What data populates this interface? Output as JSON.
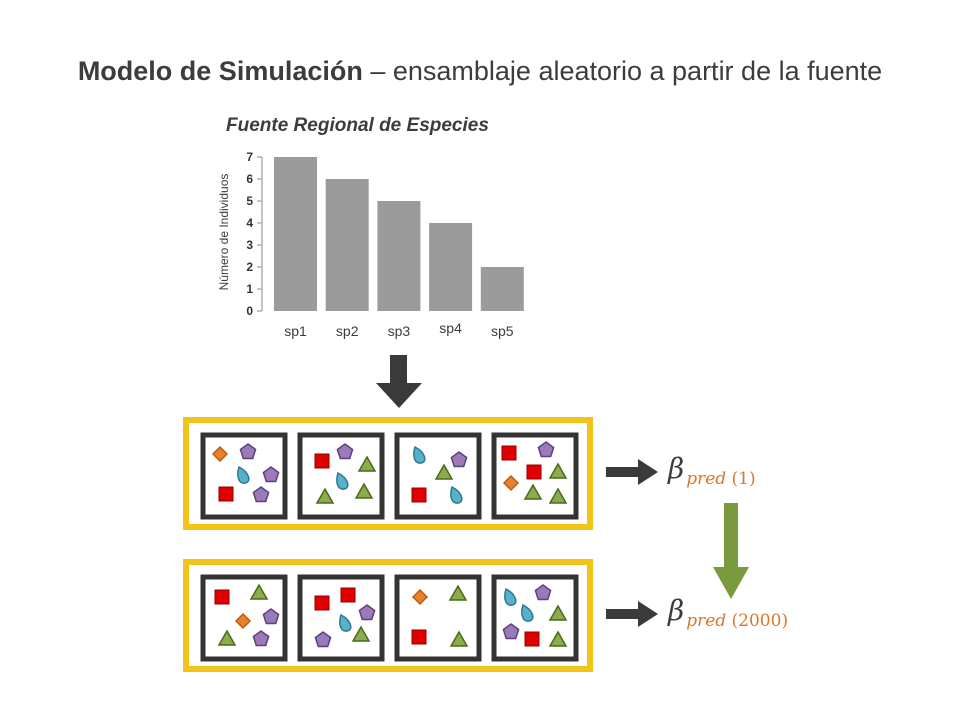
{
  "title": {
    "bold": "Modelo de Simulación",
    "rest": " – ensamblaje aleatorio a partir de la fuente"
  },
  "chart_data": {
    "type": "bar",
    "title": "Fuente Regional de Especies",
    "ylabel": "Número de Individuos",
    "xlabel": "",
    "categories": [
      "sp1",
      "sp2",
      "sp3",
      "sp4",
      "sp5"
    ],
    "values": [
      7,
      6,
      5,
      4,
      2
    ],
    "ylim": [
      0,
      7
    ],
    "yticks": [
      "0",
      "1",
      "2",
      "3",
      "4",
      "5",
      "6",
      "7"
    ],
    "bar_color": "#9b9b9b"
  },
  "outputs": [
    {
      "symbol": "β",
      "sub_word": "pred",
      "sub_num": "(1)"
    },
    {
      "symbol": "β",
      "sub_word": "pred",
      "sub_num": "(2000)"
    }
  ],
  "colors": {
    "frame": "#f2c318",
    "plot_border": "#333333",
    "diamond": "#e8812e",
    "pentagon": "#9a7bb8",
    "drop": "#5ab0c8",
    "square": "#e00000",
    "triangle": "#8cab4a",
    "down_arrow": "#7a9a3e",
    "arrow": "#3a3a3a"
  },
  "shape_legend": [
    "diamond",
    "pentagon",
    "drop",
    "square",
    "triangle"
  ]
}
